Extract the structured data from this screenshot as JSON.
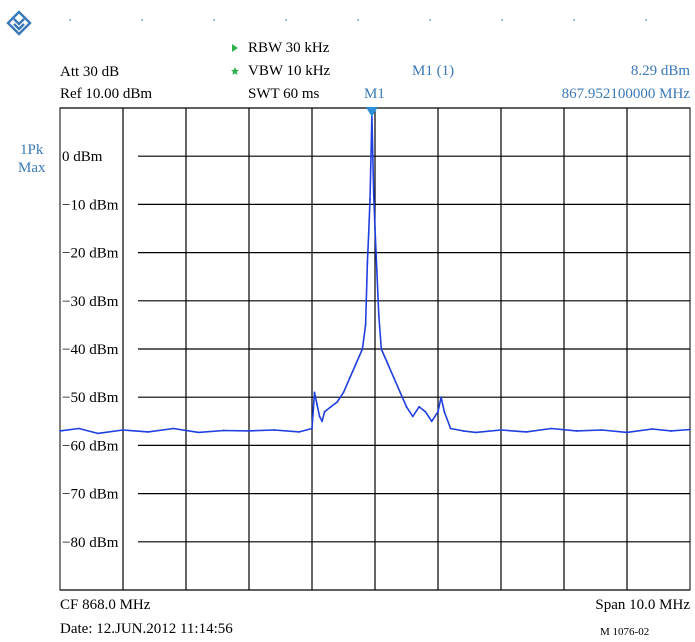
{
  "icons": {
    "logo": "rohde-schwarz-logo-icon"
  },
  "colors": {
    "trace": "#1f3fe0",
    "marker": "#2a8fd8",
    "label": "#3a78b8",
    "rbw_tri": "#2db34a"
  },
  "settings": {
    "rbw": "RBW 30 kHz",
    "vbw": "VBW 10 kHz",
    "att": "Att 30 dB",
    "ref": "Ref 10.00 dBm",
    "swt": "SWT 60 ms"
  },
  "marker": {
    "label": "M1 (1)",
    "level": "8.29 dBm",
    "freq": "867.952100000 MHz",
    "tag": "M1"
  },
  "trace": {
    "detector": "1Pk",
    "mode": "Max"
  },
  "footer": {
    "cf": "CF 868.0 MHz",
    "span": "Span 10.0 MHz",
    "date": "Date: 12.JUN.2012  11:14:56",
    "doc_id": "M 1076-02"
  },
  "chart_data": {
    "type": "line",
    "xlabel": "",
    "ylabel": "",
    "x_unit": "MHz",
    "xlim": [
      863.0,
      873.0
    ],
    "ylim": [
      -90,
      10
    ],
    "y_ticks": [
      0,
      -10,
      -20,
      -30,
      -40,
      -50,
      -60,
      -70,
      -80
    ],
    "y_tick_labels": [
      "0 dBm",
      "−10 dBm",
      "−20 dBm",
      "−30 dBm",
      "−40 dBm",
      "−50 dBm",
      "−60 dBm",
      "−70 dBm",
      "−80 dBm"
    ],
    "grid": true,
    "series": [
      {
        "x": [
          863.0,
          863.3,
          863.6,
          864.0,
          864.4,
          864.8,
          865.2,
          865.6,
          866.0,
          866.4,
          866.8,
          867.0,
          867.04,
          867.08,
          867.12,
          867.16,
          867.2,
          867.3,
          867.4,
          867.5,
          867.6,
          867.7,
          867.8,
          867.85,
          867.88,
          867.9,
          867.92,
          867.95,
          867.98,
          868.0,
          868.03,
          868.06,
          868.1,
          868.2,
          868.3,
          868.4,
          868.5,
          868.6,
          868.7,
          868.8,
          868.9,
          869.0,
          869.05,
          869.1,
          869.2,
          869.4,
          869.6,
          870.0,
          870.4,
          870.8,
          871.2,
          871.6,
          872.0,
          872.4,
          872.7,
          873.0
        ],
        "y": [
          -57,
          -56.5,
          -57.5,
          -56.8,
          -57.2,
          -56.5,
          -57.3,
          -56.9,
          -57,
          -56.8,
          -57.2,
          -56.5,
          -49,
          -51.5,
          -54,
          -55,
          -53,
          -52,
          -51,
          -49,
          -46,
          -43,
          -40,
          -35,
          -22,
          -16,
          -9,
          8.29,
          -8,
          -15,
          -24,
          -33,
          -40,
          -43,
          -46,
          -49,
          -52,
          -54,
          -52,
          -53,
          -55,
          -53,
          -50,
          -53,
          -56.5,
          -57,
          -57.3,
          -56.8,
          -57.2,
          -56.5,
          -57,
          -56.8,
          -57.3,
          -56.6,
          -57,
          -56.7
        ]
      }
    ]
  }
}
